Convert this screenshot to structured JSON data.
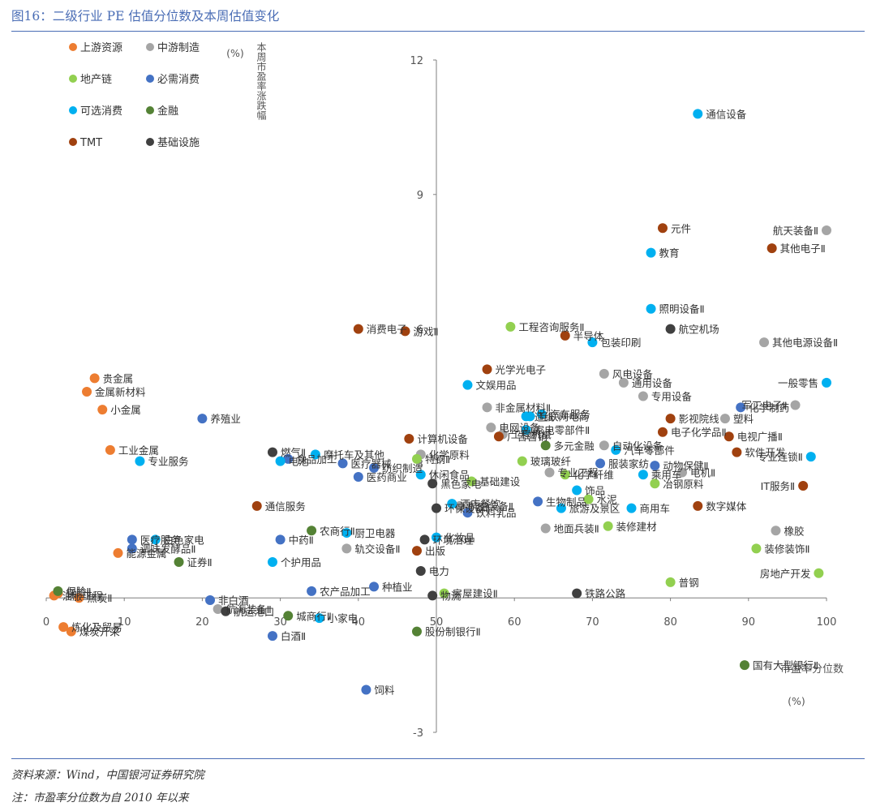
{
  "header": {
    "title": "图16：二级行业 PE 估值分位数及本周估值变化"
  },
  "footer": {
    "source": "资料来源：Wind，中国银河证券研究院",
    "note": "注：市盈率分位数为自 2010 年以来"
  },
  "chart_data": {
    "type": "scatter",
    "title": "",
    "xlabel": "市盈率分位数",
    "x_unit": "(%)",
    "ylabel": "本周市盈率涨跌幅",
    "y_unit": "(%)",
    "xlim": [
      0,
      100
    ],
    "ylim": [
      -3,
      12
    ],
    "x_ticks": [
      "0",
      "10",
      "20",
      "30",
      "40",
      "50",
      "60",
      "70",
      "80",
      "90",
      "100"
    ],
    "y_ticks": [
      "12",
      "9",
      "6",
      "3",
      "-3"
    ],
    "legend_position": "top-left",
    "series": [
      {
        "name": "上游资源",
        "color": "#ed7d31",
        "points": [
          {
            "label": "贵金属",
            "x": 6.2,
            "y": 4.9
          },
          {
            "label": "金属新材料",
            "x": 5.2,
            "y": 4.6
          },
          {
            "label": "小金属",
            "x": 7.2,
            "y": 4.2
          },
          {
            "label": "工业金属",
            "x": 8.2,
            "y": 3.3
          },
          {
            "label": "能源金属",
            "x": 9.2,
            "y": 1.0
          },
          {
            "label": "焦炭Ⅱ",
            "x": 4.2,
            "y": 0.0
          },
          {
            "label": "保险Ⅱ",
            "x": 1.5,
            "y": 0.1
          },
          {
            "label": "油服工程",
            "x": 1.0,
            "y": 0.05
          },
          {
            "label": "炼化及贸易",
            "x": 2.2,
            "y": -0.65
          },
          {
            "label": "煤炭开采",
            "x": 3.2,
            "y": -0.75
          }
        ]
      },
      {
        "name": "中游制造",
        "color": "#a5a5a5",
        "points": [
          {
            "label": "航天装备Ⅱ",
            "x": 100,
            "y": 8.2
          },
          {
            "label": "其他电源设备Ⅱ",
            "x": 92,
            "y": 5.7
          },
          {
            "label": "风电设备",
            "x": 71.5,
            "y": 5.0
          },
          {
            "label": "通用设备",
            "x": 74,
            "y": 4.8
          },
          {
            "label": "专用设备",
            "x": 76.5,
            "y": 4.5
          },
          {
            "label": "军工电子Ⅱ",
            "x": 96,
            "y": 4.3
          },
          {
            "label": "塑料",
            "x": 87,
            "y": 4.0
          },
          {
            "label": "非金属材料Ⅱ",
            "x": 56.5,
            "y": 4.25
          },
          {
            "label": "工程机械",
            "x": 58.5,
            "y": 3.65
          },
          {
            "label": "电网设备",
            "x": 57,
            "y": 3.8
          },
          {
            "label": "自动化设备",
            "x": 71.5,
            "y": 3.4
          },
          {
            "label": "电机Ⅱ",
            "x": 81.5,
            "y": 2.8
          },
          {
            "label": "橡胶",
            "x": 93.5,
            "y": 1.5
          },
          {
            "label": "专业工程",
            "x": 64.5,
            "y": 2.8
          },
          {
            "label": "航空装备Ⅱ",
            "x": 53,
            "y": 2.05
          },
          {
            "label": "地面兵装Ⅱ",
            "x": 64,
            "y": 1.55
          },
          {
            "label": "轨交设备Ⅱ",
            "x": 38.5,
            "y": 1.1
          },
          {
            "label": "航海装备Ⅱ",
            "x": 22,
            "y": -0.25
          },
          {
            "label": "化学原料",
            "x": 48,
            "y": 3.2
          }
        ]
      },
      {
        "name": "地产链",
        "color": "#92d050",
        "points": [
          {
            "label": "工程咨询服务Ⅱ",
            "x": 59.5,
            "y": 6.05
          },
          {
            "label": "玻璃玻纤",
            "x": 61,
            "y": 3.05
          },
          {
            "label": "基础建设",
            "x": 54.5,
            "y": 2.6
          },
          {
            "label": "化学纤维",
            "x": 66.5,
            "y": 2.75
          },
          {
            "label": "水泥",
            "x": 69.5,
            "y": 2.2
          },
          {
            "label": "装修建材",
            "x": 72,
            "y": 1.6
          },
          {
            "label": "冶钢原料",
            "x": 78,
            "y": 2.55
          },
          {
            "label": "普钢",
            "x": 80,
            "y": 0.35
          },
          {
            "label": "装修装饰Ⅱ",
            "x": 91,
            "y": 1.1
          },
          {
            "label": "房地产开发",
            "x": 99,
            "y": 0.55
          },
          {
            "label": "房屋建设Ⅱ",
            "x": 51,
            "y": 0.1
          },
          {
            "label": "特钢Ⅱ",
            "x": 47.5,
            "y": 3.1
          }
        ]
      },
      {
        "name": "必需消费",
        "color": "#4472c4",
        "points": [
          {
            "label": "养殖业",
            "x": 20,
            "y": 4.0
          },
          {
            "label": "化学制药",
            "x": 89,
            "y": 4.25
          },
          {
            "label": "动物保健Ⅱ",
            "x": 78,
            "y": 2.95
          },
          {
            "label": "食品加工",
            "x": 31,
            "y": 3.1
          },
          {
            "label": "医疗器械",
            "x": 38,
            "y": 3.0
          },
          {
            "label": "纺织制造",
            "x": 42,
            "y": 2.9
          },
          {
            "label": "医药商业",
            "x": 40,
            "y": 2.7
          },
          {
            "label": "中药Ⅱ",
            "x": 30,
            "y": 1.3
          },
          {
            "label": "医疗服务",
            "x": 11,
            "y": 1.3
          },
          {
            "label": "调味发酵品Ⅱ",
            "x": 11,
            "y": 1.1
          },
          {
            "label": "生物制品",
            "x": 63,
            "y": 2.15
          },
          {
            "label": "饮料乳品",
            "x": 54,
            "y": 1.9
          },
          {
            "label": "服装家纺",
            "x": 71,
            "y": 3.0
          },
          {
            "label": "种植业",
            "x": 42,
            "y": 0.25
          },
          {
            "label": "农产品加工",
            "x": 34,
            "y": 0.15
          },
          {
            "label": "非白酒",
            "x": 21,
            "y": -0.05
          },
          {
            "label": "白酒Ⅱ",
            "x": 29,
            "y": -0.85
          },
          {
            "label": "饲料",
            "x": 41,
            "y": -2.05
          }
        ]
      },
      {
        "name": "可选消费",
        "color": "#00b0f0",
        "points": [
          {
            "label": "通信设备",
            "x": 83.5,
            "y": 10.8
          },
          {
            "label": "教育",
            "x": 77.5,
            "y": 7.7
          },
          {
            "label": "照明设备Ⅱ",
            "x": 77.5,
            "y": 6.45
          },
          {
            "label": "包装印刷",
            "x": 70,
            "y": 5.7
          },
          {
            "label": "文娱用品",
            "x": 54,
            "y": 4.75
          },
          {
            "label": "一般零售",
            "x": 100,
            "y": 4.8
          },
          {
            "label": "造纸",
            "x": 61.5,
            "y": 4.05
          },
          {
            "label": "汽车服务",
            "x": 63.5,
            "y": 4.1
          },
          {
            "label": "互联网电商",
            "x": 62,
            "y": 4.05
          },
          {
            "label": "家电零部件Ⅱ",
            "x": 61.5,
            "y": 3.75
          },
          {
            "label": "汽车零部件",
            "x": 73,
            "y": 3.3
          },
          {
            "label": "专业连锁Ⅱ",
            "x": 98,
            "y": 3.15
          },
          {
            "label": "乘用车",
            "x": 76.5,
            "y": 2.75
          },
          {
            "label": "饰品",
            "x": 68,
            "y": 2.4
          },
          {
            "label": "商用车",
            "x": 75,
            "y": 2.0
          },
          {
            "label": "旅游及景区",
            "x": 66,
            "y": 2.0
          },
          {
            "label": "休闲食品",
            "x": 48,
            "y": 2.75
          },
          {
            "label": "酒店餐饮",
            "x": 52,
            "y": 2.1
          },
          {
            "label": "厨卫电器",
            "x": 38.5,
            "y": 1.45
          },
          {
            "label": "化妆品",
            "x": 50,
            "y": 1.35
          },
          {
            "label": "个护用品",
            "x": 29,
            "y": 0.8
          },
          {
            "label": "小家电",
            "x": 35,
            "y": -0.45
          },
          {
            "label": "白色家电",
            "x": 14,
            "y": 1.3
          },
          {
            "label": "专业服务",
            "x": 12,
            "y": 3.05
          },
          {
            "label": "电池",
            "x": 30,
            "y": 3.05
          },
          {
            "label": "摩托车及其他",
            "x": 34.5,
            "y": 3.2
          }
        ]
      },
      {
        "name": "金融",
        "color": "#548235",
        "points": [
          {
            "label": "多元金融",
            "x": 64,
            "y": 3.4
          },
          {
            "label": "农商行Ⅱ",
            "x": 34,
            "y": 1.5
          },
          {
            "label": "证券Ⅱ",
            "x": 17,
            "y": 0.8
          },
          {
            "label": "城商行Ⅱ",
            "x": 31,
            "y": -0.4
          },
          {
            "label": "股份制银行Ⅱ",
            "x": 47.5,
            "y": -0.75
          },
          {
            "label": "国有大型银行Ⅱ",
            "x": 89.5,
            "y": -1.5
          },
          {
            "label": "保险Ⅱ",
            "x": 1.5,
            "y": 0.15
          }
        ]
      },
      {
        "name": "TMT",
        "color": "#a0410f",
        "points": [
          {
            "label": "元件",
            "x": 79,
            "y": 8.25
          },
          {
            "label": "其他电子Ⅱ",
            "x": 93,
            "y": 7.8
          },
          {
            "label": "消费电子",
            "x": 40,
            "y": 6.0
          },
          {
            "label": "游戏Ⅱ",
            "x": 46,
            "y": 5.95
          },
          {
            "label": "半导体",
            "x": 66.5,
            "y": 5.85
          },
          {
            "label": "光学光电子",
            "x": 56.5,
            "y": 5.1
          },
          {
            "label": "影视院线",
            "x": 80,
            "y": 4.0
          },
          {
            "label": "电子化学品Ⅱ",
            "x": 79,
            "y": 3.7
          },
          {
            "label": "电视广播Ⅱ",
            "x": 87.5,
            "y": 3.6
          },
          {
            "label": "软件开发",
            "x": 88.5,
            "y": 3.25
          },
          {
            "label": "IT服务Ⅱ",
            "x": 97,
            "y": 2.5
          },
          {
            "label": "数字媒体",
            "x": 83.5,
            "y": 2.05
          },
          {
            "label": "计算机设备",
            "x": 46.5,
            "y": 3.55
          },
          {
            "label": "广告营销",
            "x": 58,
            "y": 3.6
          },
          {
            "label": "通信服务",
            "x": 27,
            "y": 2.05
          },
          {
            "label": "出版",
            "x": 47.5,
            "y": 1.05
          }
        ]
      },
      {
        "name": "基础设施",
        "color": "#404040",
        "points": [
          {
            "label": "航空机场",
            "x": 80,
            "y": 6.0
          },
          {
            "label": "燃气Ⅱ",
            "x": 29,
            "y": 3.25
          },
          {
            "label": "黑色家电",
            "x": 49.5,
            "y": 2.55
          },
          {
            "label": "环境治理",
            "x": 48.5,
            "y": 1.3
          },
          {
            "label": "环保设备Ⅱ",
            "x": 50,
            "y": 2.0
          },
          {
            "label": "电力",
            "x": 48,
            "y": 0.6
          },
          {
            "label": "物流",
            "x": 49.5,
            "y": 0.05
          },
          {
            "label": "铁路公路",
            "x": 68,
            "y": 0.1
          },
          {
            "label": "航运港口",
            "x": 23,
            "y": -0.3
          }
        ]
      }
    ]
  }
}
